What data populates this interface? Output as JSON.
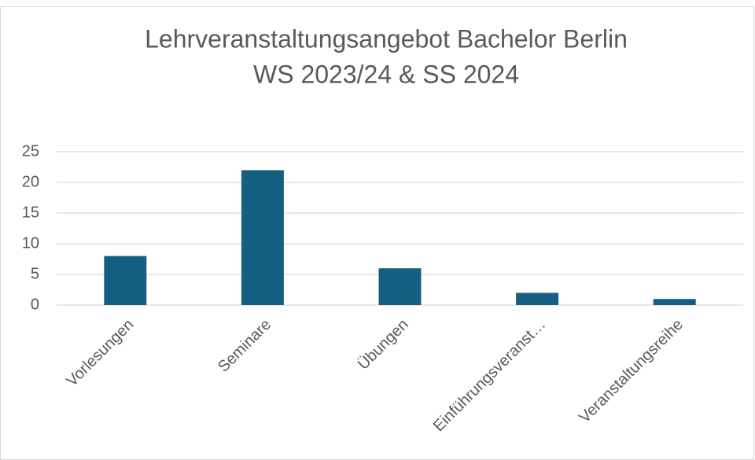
{
  "chart_data": {
    "type": "bar",
    "title": [
      "Lehrveranstaltungsangebot Bachelor Berlin",
      "WS 2023/24 & SS 2024"
    ],
    "categories": [
      "Vorlesungen",
      "Seminare",
      "Übungen",
      "Einführungsveranst…",
      "Veranstaltungsreihe"
    ],
    "values": [
      8,
      22,
      6,
      2,
      1
    ],
    "color": "#156082",
    "ylim": [
      0,
      25
    ],
    "yticks": [
      0,
      5,
      10,
      15,
      20,
      25
    ],
    "grid": true
  }
}
